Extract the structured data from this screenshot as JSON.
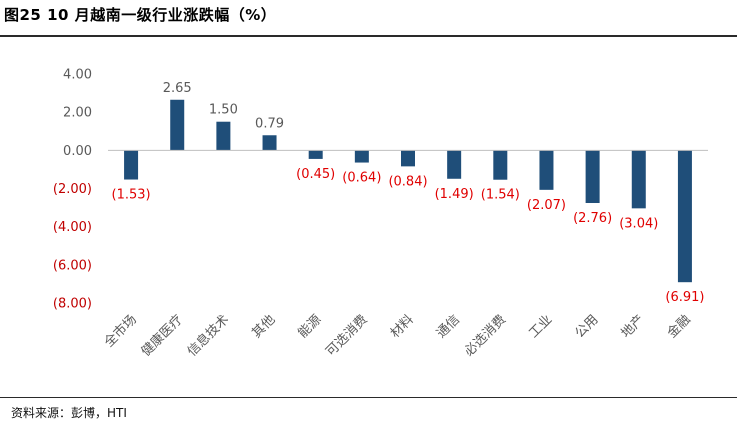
{
  "figure_title": "图25 10 月越南一级行业涨跌幅（%）",
  "source": "资料来源：彭博，HTI",
  "colors": {
    "bar": "#1f4e79",
    "negative_label": "#e00000",
    "axis_text": "#595959"
  },
  "chart_data": {
    "type": "bar",
    "title": "",
    "xlabel": "",
    "ylabel": "",
    "ylim": [
      -8,
      4
    ],
    "yticks": [
      4,
      2,
      0,
      -2,
      -4,
      -6,
      -8
    ],
    "ytick_labels": [
      "4.00",
      "2.00",
      "0.00",
      "(2.00)",
      "(4.00)",
      "(6.00)",
      "(8.00)"
    ],
    "grid": false,
    "categories": [
      "全市场",
      "健康医疗",
      "信息技术",
      "其他",
      "能源",
      "可选消费",
      "材料",
      "通信",
      "必选消费",
      "工业",
      "公用",
      "地产",
      "金融"
    ],
    "values": [
      -1.53,
      2.65,
      1.5,
      0.79,
      -0.45,
      -0.64,
      -0.84,
      -1.49,
      -1.54,
      -2.07,
      -2.76,
      -3.04,
      -6.91
    ],
    "value_labels": [
      "(1.53)",
      "2.65",
      "1.50",
      "0.79",
      "(0.45)",
      "(0.64)",
      "(0.84)",
      "(1.49)",
      "(1.54)",
      "(2.07)",
      "(2.76)",
      "(3.04)",
      "(6.91)"
    ]
  }
}
